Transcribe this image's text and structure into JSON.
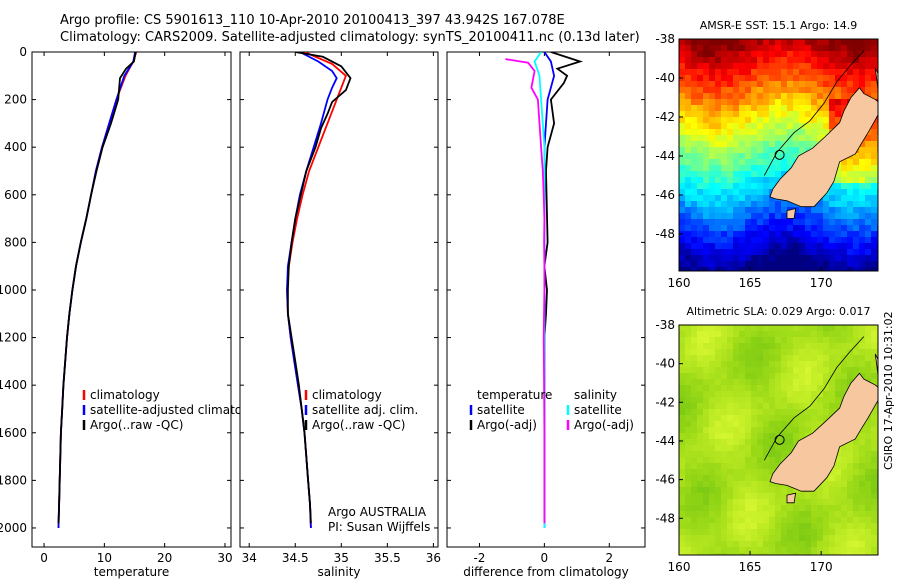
{
  "header": {
    "line1": "Argo profile: CS 5901613_110 10-Apr-2010 20100413_397 43.942S 167.078E",
    "line2": "Climatology: CARS2009. Satellite-adjusted climatology: synTS_20100411.nc (0.13d later)"
  },
  "colors": {
    "red": "#ff0000",
    "blue": "#0000ff",
    "black": "#000000",
    "cyan": "#00ffff",
    "magenta": "#ff00ff"
  },
  "chart_data": [
    {
      "type": "line",
      "xlabel": "temperature",
      "ylabel": "",
      "xlim": [
        -2,
        31
      ],
      "ylim": [
        2080,
        0
      ],
      "xticks": [
        0,
        10,
        20,
        30
      ],
      "yticks": [
        0,
        200,
        400,
        600,
        800,
        1000,
        1200,
        1400,
        1600,
        1800,
        2000
      ],
      "legend": [
        {
          "label": "climatology",
          "color": "#ff0000"
        },
        {
          "label": "satellite-adjusted climatology",
          "color": "#0000ff"
        },
        {
          "label": "Argo(..raw -QC)",
          "color": "#000000"
        }
      ],
      "series": [
        {
          "name": "climatology",
          "color": "#ff0000",
          "points": [
            [
              15.3,
              0
            ],
            [
              14.8,
              40
            ],
            [
              13.5,
              100
            ],
            [
              12,
              200
            ],
            [
              10.8,
              300
            ],
            [
              9.6,
              400
            ],
            [
              8.6,
              500
            ],
            [
              7.8,
              600
            ],
            [
              7,
              700
            ],
            [
              6.1,
              800
            ],
            [
              5.3,
              900
            ],
            [
              4.7,
              1000
            ],
            [
              4.2,
              1100
            ],
            [
              3.8,
              1200
            ],
            [
              3.5,
              1300
            ],
            [
              3.2,
              1400
            ],
            [
              3,
              1500
            ],
            [
              2.8,
              1600
            ],
            [
              2.7,
              1700
            ],
            [
              2.6,
              1800
            ],
            [
              2.5,
              1900
            ],
            [
              2.4,
              2000
            ]
          ]
        },
        {
          "name": "satellite-adjusted climatology",
          "color": "#0000ff",
          "points": [
            [
              15.1,
              0
            ],
            [
              14.8,
              40
            ],
            [
              13.3,
              100
            ],
            [
              12,
              200
            ],
            [
              10.8,
              300
            ],
            [
              9.6,
              400
            ],
            [
              8.6,
              500
            ],
            [
              7.8,
              600
            ],
            [
              7,
              700
            ],
            [
              6.1,
              800
            ],
            [
              5.3,
              900
            ],
            [
              4.7,
              1000
            ],
            [
              4.2,
              1100
            ],
            [
              3.8,
              1200
            ],
            [
              3.5,
              1300
            ],
            [
              3.2,
              1400
            ],
            [
              3,
              1500
            ],
            [
              2.8,
              1600
            ],
            [
              2.7,
              1700
            ],
            [
              2.6,
              1800
            ],
            [
              2.5,
              1900
            ],
            [
              2.4,
              2000
            ]
          ]
        },
        {
          "name": "Argo(..raw -QC)",
          "color": "#000000",
          "points": [
            [
              15.2,
              0
            ],
            [
              14.9,
              40
            ],
            [
              13.6,
              70
            ],
            [
              12.6,
              110
            ],
            [
              12.3,
              200
            ],
            [
              11.1,
              300
            ],
            [
              9.7,
              400
            ],
            [
              8.7,
              500
            ],
            [
              7.8,
              600
            ],
            [
              7,
              700
            ],
            [
              6.1,
              800
            ],
            [
              5.3,
              900
            ],
            [
              4.7,
              1000
            ],
            [
              4.2,
              1100
            ],
            [
              3.8,
              1200
            ],
            [
              3.5,
              1300
            ],
            [
              3.2,
              1400
            ],
            [
              3,
              1500
            ],
            [
              2.8,
              1600
            ],
            [
              2.7,
              1700
            ],
            [
              2.6,
              1800
            ],
            [
              2.5,
              1900
            ],
            [
              2.4,
              1980
            ]
          ]
        }
      ]
    },
    {
      "type": "line",
      "xlabel": "salinity",
      "xlim": [
        33.9,
        36.05
      ],
      "ylim": [
        2080,
        0
      ],
      "xticks": [
        34,
        34.5,
        35,
        35.5,
        36
      ],
      "legend": [
        {
          "label": "climatology",
          "color": "#ff0000"
        },
        {
          "label": "satellite adj. clim.",
          "color": "#0000ff"
        },
        {
          "label": "Argo(..raw -QC)",
          "color": "#000000"
        }
      ],
      "annotation": [
        "Argo AUSTRALIA",
        "PI: Susan Wijffels"
      ],
      "series": [
        {
          "name": "climatology",
          "color": "#ff0000",
          "points": [
            [
              34.6,
              0
            ],
            [
              34.9,
              50
            ],
            [
              35.05,
              100
            ],
            [
              35,
              150
            ],
            [
              34.95,
              200
            ],
            [
              34.85,
              300
            ],
            [
              34.75,
              400
            ],
            [
              34.65,
              500
            ],
            [
              34.58,
              600
            ],
            [
              34.52,
              700
            ],
            [
              34.47,
              800
            ],
            [
              34.43,
              900
            ],
            [
              34.41,
              1000
            ],
            [
              34.42,
              1100
            ],
            [
              34.45,
              1200
            ],
            [
              34.49,
              1300
            ],
            [
              34.53,
              1400
            ],
            [
              34.57,
              1500
            ],
            [
              34.6,
              1600
            ],
            [
              34.62,
              1700
            ],
            [
              34.64,
              1800
            ],
            [
              34.66,
              1900
            ],
            [
              34.67,
              2000
            ]
          ]
        },
        {
          "name": "satellite adj. clim.",
          "color": "#0000ff",
          "points": [
            [
              34.55,
              0
            ],
            [
              34.75,
              40
            ],
            [
              34.9,
              80
            ],
            [
              34.95,
              110
            ],
            [
              34.9,
              150
            ],
            [
              34.85,
              200
            ],
            [
              34.78,
              300
            ],
            [
              34.7,
              400
            ],
            [
              34.62,
              500
            ],
            [
              34.55,
              600
            ],
            [
              34.5,
              700
            ],
            [
              34.46,
              800
            ],
            [
              34.42,
              900
            ],
            [
              34.41,
              1000
            ],
            [
              34.42,
              1100
            ],
            [
              34.45,
              1200
            ],
            [
              34.49,
              1300
            ],
            [
              34.53,
              1400
            ],
            [
              34.57,
              1500
            ],
            [
              34.6,
              1600
            ],
            [
              34.62,
              1700
            ],
            [
              34.64,
              1800
            ],
            [
              34.66,
              1900
            ],
            [
              34.67,
              2000
            ]
          ]
        },
        {
          "name": "Argo(..raw -QC)",
          "color": "#000000",
          "points": [
            [
              34.5,
              0
            ],
            [
              34.8,
              20
            ],
            [
              35.0,
              60
            ],
            [
              35.1,
              110
            ],
            [
              35.05,
              160
            ],
            [
              34.9,
              210
            ],
            [
              34.85,
              260
            ],
            [
              34.78,
              320
            ],
            [
              34.72,
              400
            ],
            [
              34.62,
              500
            ],
            [
              34.56,
              600
            ],
            [
              34.5,
              700
            ],
            [
              34.46,
              800
            ],
            [
              34.43,
              900
            ],
            [
              34.42,
              1000
            ],
            [
              34.42,
              1100
            ],
            [
              34.46,
              1200
            ],
            [
              34.5,
              1300
            ],
            [
              34.54,
              1400
            ],
            [
              34.57,
              1500
            ],
            [
              34.6,
              1600
            ],
            [
              34.62,
              1700
            ],
            [
              34.64,
              1800
            ],
            [
              34.66,
              1900
            ],
            [
              34.67,
              1980
            ]
          ]
        }
      ]
    },
    {
      "type": "line",
      "xlabel": "difference from climatology",
      "xlim": [
        -3,
        3.1
      ],
      "ylim": [
        2080,
        0
      ],
      "xticks": [
        -2,
        0,
        2
      ],
      "legend": [
        {
          "label": "temperature",
          "color": "",
          "group": "temperature"
        },
        {
          "label": "satellite",
          "color": "#0000ff",
          "group": "temperature"
        },
        {
          "label": "Argo(-adj)",
          "color": "#000000",
          "group": "temperature"
        },
        {
          "label": "salinity",
          "color": "",
          "group": "salinity"
        },
        {
          "label": "satellite",
          "color": "#00ffff",
          "group": "salinity"
        },
        {
          "label": "Argo(-adj)",
          "color": "#ff00ff",
          "group": "salinity"
        }
      ],
      "series": [
        {
          "name": "satellite",
          "color": "#0000ff",
          "points": [
            [
              0,
              0
            ],
            [
              0.2,
              40
            ],
            [
              0.3,
              100
            ],
            [
              0.1,
              200
            ],
            [
              0.05,
              300
            ],
            [
              0,
              400
            ],
            [
              0,
              2000
            ]
          ]
        },
        {
          "name": "Argo(-adj)",
          "color": "#000000",
          "points": [
            [
              0.2,
              0
            ],
            [
              1.1,
              40
            ],
            [
              0.4,
              70
            ],
            [
              0.7,
              100
            ],
            [
              0.6,
              130
            ],
            [
              0.2,
              200
            ],
            [
              0.3,
              300
            ],
            [
              0.1,
              400
            ],
            [
              0.05,
              500
            ],
            [
              0.1,
              800
            ],
            [
              0,
              900
            ],
            [
              0.08,
              1000
            ],
            [
              0.05,
              1100
            ],
            [
              0,
              1200
            ],
            [
              0,
              1980
            ]
          ]
        },
        {
          "name": "satellite",
          "color": "#00ffff",
          "points": [
            [
              -0.1,
              0
            ],
            [
              -0.3,
              40
            ],
            [
              -0.15,
              100
            ],
            [
              -0.1,
              200
            ],
            [
              -0.05,
              300
            ],
            [
              0,
              400
            ],
            [
              0,
              2000
            ]
          ]
        },
        {
          "name": "Argo(-adj)",
          "color": "#ff00ff",
          "points": [
            [
              -1.2,
              30
            ],
            [
              -0.5,
              45
            ],
            [
              -0.3,
              80
            ],
            [
              -0.4,
              150
            ],
            [
              -0.2,
              200
            ],
            [
              -0.15,
              300
            ],
            [
              -0.1,
              400
            ],
            [
              -0.05,
              500
            ],
            [
              -0.02,
              600
            ],
            [
              0,
              700
            ],
            [
              -0.01,
              800
            ],
            [
              0,
              900
            ],
            [
              0,
              1000
            ],
            [
              -0.02,
              1200
            ],
            [
              -0.01,
              1400
            ],
            [
              0,
              1600
            ],
            [
              0,
              1980
            ]
          ]
        }
      ]
    },
    {
      "type": "heatmap",
      "title": "AMSR-E SST: 15.1 Argo: 14.9",
      "xlim": [
        160,
        174
      ],
      "ylim": [
        -49.9,
        -38
      ],
      "xticks": [
        160,
        165,
        170
      ],
      "yticks": [
        -38,
        -40,
        -42,
        -44,
        -46,
        -48
      ],
      "argo_position": [
        167.078,
        -43.942
      ],
      "colormap": "jet"
    },
    {
      "type": "heatmap",
      "title": "Altimetric SLA: 0.029 Argo: 0.017",
      "xlim": [
        160,
        174
      ],
      "ylim": [
        -49.9,
        -38
      ],
      "xticks": [
        160,
        165,
        170
      ],
      "yticks": [
        -38,
        -40,
        -42,
        -44,
        -46,
        -48
      ],
      "argo_position": [
        167.078,
        -43.942
      ],
      "colormap": "green"
    }
  ],
  "side_label": "CSIRO 17-Apr-2010 10:31:02"
}
